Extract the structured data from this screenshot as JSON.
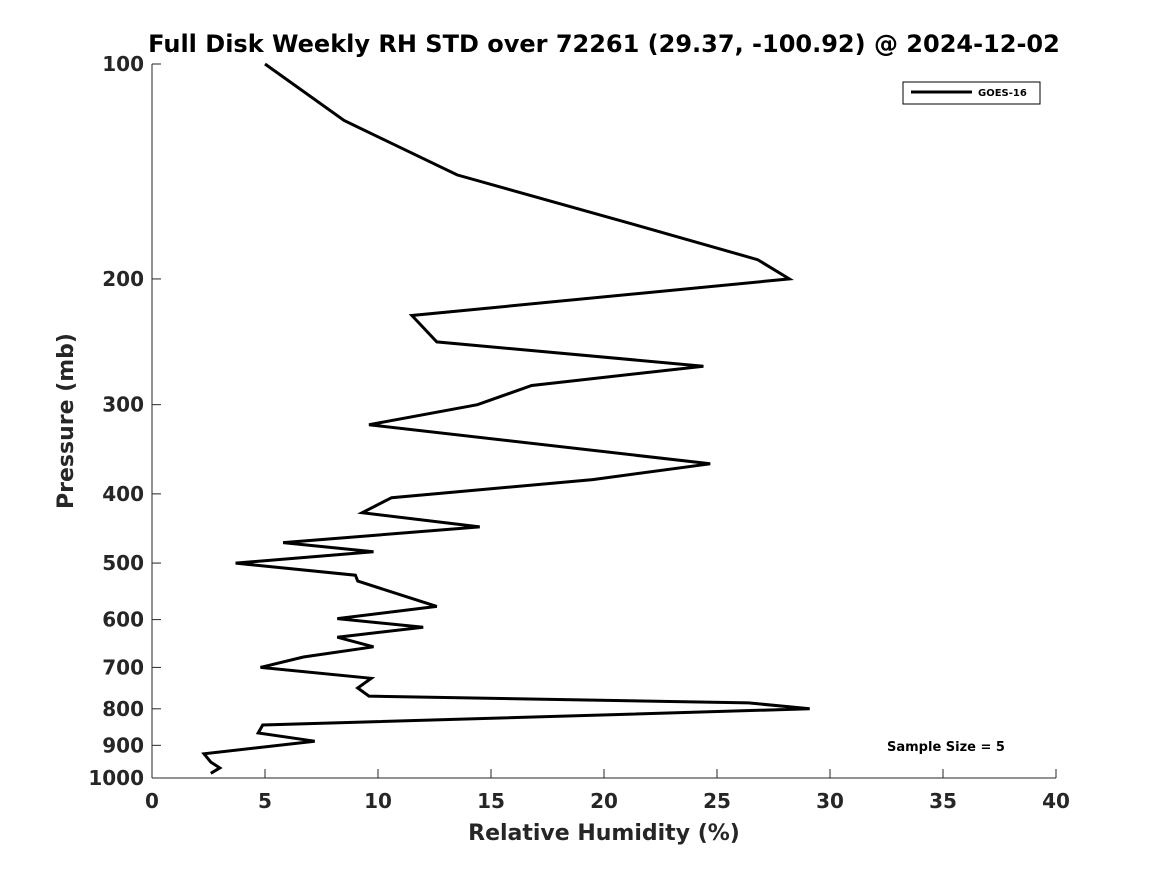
{
  "chart_data": {
    "type": "line",
    "title": "Full Disk Weekly RH STD over 72261 (29.37, -100.92) @ 2024-12-02",
    "xlabel": "Relative Humidity (%)",
    "ylabel": "Pressure (mb)",
    "xlim": [
      0,
      40
    ],
    "ylim": [
      100,
      1000
    ],
    "yscale": "log",
    "y_reversed": true,
    "grid": false,
    "x_ticks": [
      0,
      5,
      10,
      15,
      20,
      25,
      30,
      35,
      40
    ],
    "y_ticks": [
      100,
      200,
      300,
      400,
      500,
      600,
      700,
      800,
      900,
      1000
    ],
    "legend": {
      "position": "top-right",
      "entries": [
        "GOES-16"
      ]
    },
    "annotation": "Sample Size = 5",
    "series": [
      {
        "name": "GOES-16",
        "color": "#000000",
        "x": [
          5.0,
          8.5,
          13.5,
          21.4,
          26.8,
          28.2,
          11.5,
          12.6,
          24.4,
          16.8,
          14.4,
          9.6,
          24.7,
          19.5,
          10.6,
          9.3,
          14.5,
          5.8,
          9.8,
          3.7,
          9.0,
          9.1,
          12.6,
          8.2,
          12.0,
          8.2,
          9.8,
          6.7,
          4.8,
          9.7,
          9.1,
          9.6,
          26.4,
          29.1,
          4.9,
          4.7,
          7.2,
          2.3,
          2.6,
          3.0,
          2.6
        ],
        "y": [
          100,
          120,
          143,
          168,
          188,
          200,
          225,
          245,
          265,
          282,
          300,
          320,
          363,
          382,
          405,
          425,
          445,
          468,
          482,
          500,
          520,
          530,
          575,
          598,
          615,
          635,
          655,
          677,
          700,
          725,
          748,
          768,
          785,
          800,
          843,
          865,
          888,
          925,
          950,
          968,
          985
        ]
      }
    ]
  }
}
